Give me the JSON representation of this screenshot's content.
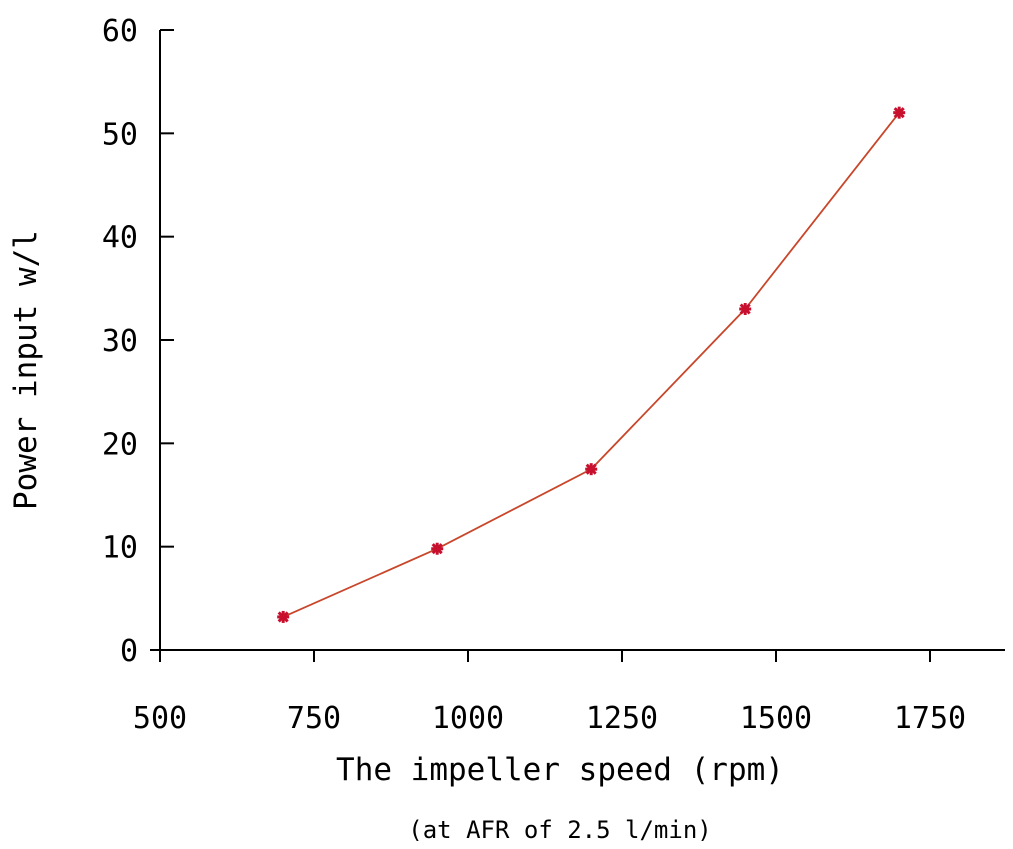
{
  "chart_data": {
    "type": "line",
    "title": "",
    "xlabel": "The impeller speed (rpm)",
    "xlabel_sub": "(at AFR of 2.5 l/min)",
    "ylabel": "Power input w/l",
    "xlim": [
      500,
      1750
    ],
    "ylim": [
      0,
      60
    ],
    "x_ticks": [
      500,
      750,
      1000,
      1250,
      1500,
      1750
    ],
    "y_ticks": [
      0,
      10,
      20,
      30,
      40,
      50,
      60
    ],
    "grid": false,
    "colors": {
      "line": "#c8462a",
      "marker": "#c8102e"
    },
    "series": [
      {
        "x": [
          700,
          950,
          1200,
          1450,
          1700
        ],
        "y": [
          3.2,
          9.8,
          17.5,
          33.0,
          52.0
        ]
      }
    ]
  }
}
